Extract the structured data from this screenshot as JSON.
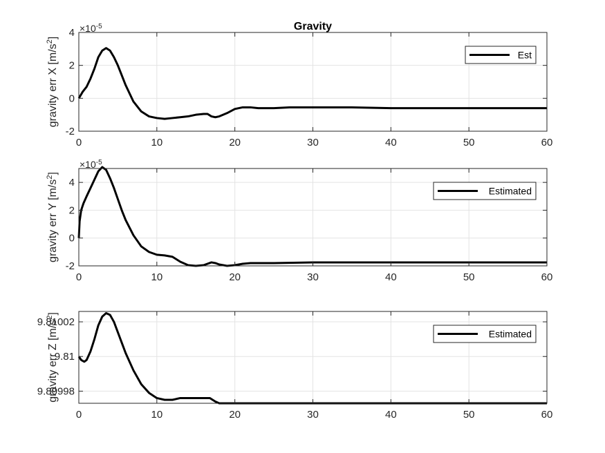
{
  "chart_data": [
    {
      "type": "line",
      "title": "Gravity",
      "ylabel": {
        "main": "gravity err X [m/s",
        "sup": "2",
        "tail": "]"
      },
      "exponent": {
        "base": "×10",
        "power": "-5"
      },
      "xlim": [
        0,
        60
      ],
      "ylim": [
        -2,
        4
      ],
      "xticks": [
        0,
        10,
        20,
        30,
        40,
        50,
        60
      ],
      "yticks": [
        -2,
        0,
        2,
        4
      ],
      "grid": true,
      "legend_position": "top-right",
      "series": [
        {
          "name": "Est",
          "color": "#000000",
          "x": [
            0,
            0.5,
            1,
            1.5,
            2,
            2.5,
            3,
            3.5,
            4,
            4.5,
            5,
            5.5,
            6,
            7,
            8,
            9,
            10,
            11,
            12,
            13,
            14,
            15,
            16,
            16.5,
            17,
            17.5,
            18,
            19,
            20,
            21,
            22,
            23,
            25,
            27,
            30,
            35,
            40,
            45,
            50,
            55,
            60
          ],
          "y": [
            0,
            0.4,
            0.7,
            1.2,
            1.8,
            2.5,
            2.9,
            3.05,
            2.9,
            2.5,
            2.0,
            1.4,
            0.8,
            -0.2,
            -0.8,
            -1.1,
            -1.2,
            -1.25,
            -1.2,
            -1.15,
            -1.1,
            -1.0,
            -0.95,
            -0.95,
            -1.1,
            -1.15,
            -1.1,
            -0.9,
            -0.65,
            -0.55,
            -0.55,
            -0.6,
            -0.6,
            -0.55,
            -0.55,
            -0.55,
            -0.6,
            -0.6,
            -0.6,
            -0.6,
            -0.6
          ]
        }
      ]
    },
    {
      "type": "line",
      "ylabel": {
        "main": "gravity err Y [m/s",
        "sup": "2",
        "tail": "]"
      },
      "exponent": {
        "base": "×10",
        "power": "-5"
      },
      "xlim": [
        0,
        60
      ],
      "ylim": [
        -2,
        5
      ],
      "xticks": [
        0,
        10,
        20,
        30,
        40,
        50,
        60
      ],
      "yticks": [
        -2,
        0,
        2,
        4
      ],
      "grid": true,
      "legend_position": "top-right",
      "series": [
        {
          "name": "Estimated",
          "color": "#000000",
          "x": [
            0,
            0.1,
            0.3,
            0.6,
            1,
            1.5,
            2,
            2.5,
            3,
            3.5,
            4,
            4.5,
            5,
            5.5,
            6,
            7,
            8,
            9,
            10,
            11,
            12,
            13,
            14,
            15,
            16,
            17,
            17.5,
            18,
            19,
            20,
            21,
            22,
            25,
            30,
            35,
            40,
            45,
            50,
            55,
            60
          ],
          "y": [
            0,
            1.2,
            2.0,
            2.5,
            3.0,
            3.6,
            4.2,
            4.8,
            5.1,
            4.9,
            4.3,
            3.6,
            2.8,
            2.0,
            1.3,
            0.2,
            -0.6,
            -1.0,
            -1.2,
            -1.25,
            -1.35,
            -1.7,
            -1.95,
            -2.0,
            -1.95,
            -1.75,
            -1.8,
            -1.9,
            -2.0,
            -1.95,
            -1.85,
            -1.8,
            -1.8,
            -1.75,
            -1.75,
            -1.75,
            -1.75,
            -1.75,
            -1.75,
            -1.75
          ]
        }
      ]
    },
    {
      "type": "line",
      "ylabel": {
        "main": "gravity err Z [m/s",
        "sup": "2",
        "tail": "]"
      },
      "xlim": [
        0,
        60
      ],
      "ylim": [
        9.809973,
        9.810026
      ],
      "xticks": [
        0,
        10,
        20,
        30,
        40,
        50,
        60
      ],
      "yticks": [
        9.80998,
        9.81,
        9.81002
      ],
      "ytick_labels": [
        "9.80998",
        "9.81",
        "9.81002"
      ],
      "grid": true,
      "legend_position": "top-right",
      "series": [
        {
          "name": "Estimated",
          "color": "#000000",
          "x": [
            0,
            0.3,
            0.7,
            1,
            1.5,
            2,
            2.5,
            3,
            3.5,
            4,
            4.5,
            5,
            5.5,
            6,
            7,
            8,
            9,
            10,
            11,
            12,
            13,
            14,
            15,
            16,
            16.8,
            17.5,
            18,
            19,
            20,
            22,
            25,
            30,
            40,
            50,
            60
          ],
          "y": [
            9.81,
            9.809998,
            9.809997,
            9.809998,
            9.810003,
            9.81001,
            9.810018,
            9.810023,
            9.810025,
            9.810024,
            9.81002,
            9.810014,
            9.810008,
            9.810002,
            9.809992,
            9.809984,
            9.809979,
            9.809976,
            9.809975,
            9.809975,
            9.809976,
            9.809976,
            9.809976,
            9.809976,
            9.809976,
            9.809974,
            9.809973,
            9.809973,
            9.809973,
            9.809973,
            9.809973,
            9.809973,
            9.809973,
            9.809973,
            9.809973
          ]
        }
      ]
    }
  ]
}
